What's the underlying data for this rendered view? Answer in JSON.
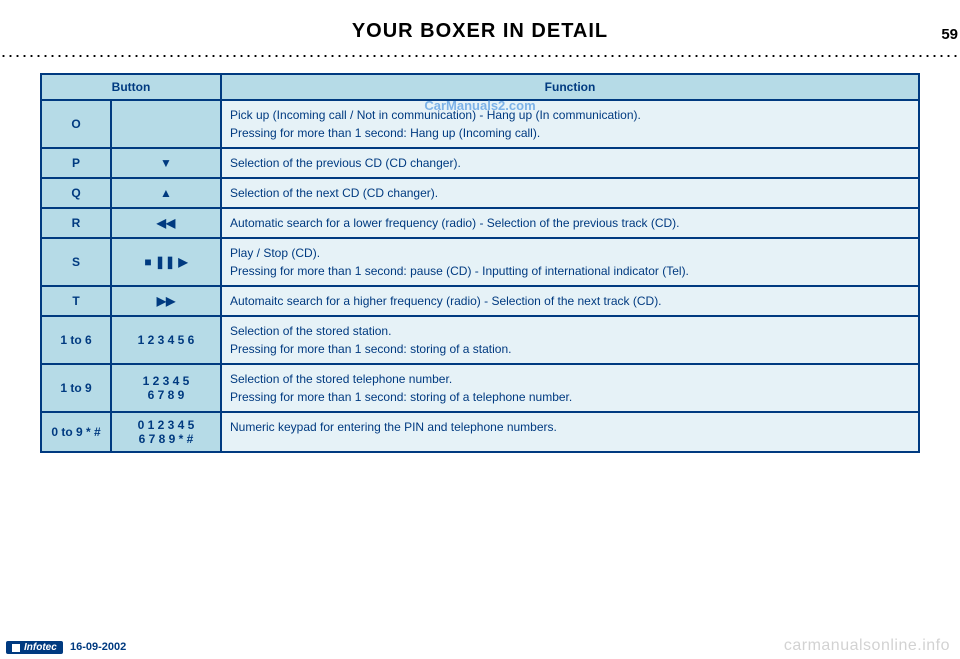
{
  "page_number": "59",
  "title": "YOUR BOXER IN DETAIL",
  "watermark_top": "CarManuals2.com",
  "table": {
    "headers": {
      "button": "Button",
      "function": "Function"
    },
    "rows": [
      {
        "key": "O",
        "symbol": "",
        "function": "Pick up (Incoming call / Not in communication) - Hang up (In communication).\nPressing for more than 1 second: Hang up (Incoming call)."
      },
      {
        "key": "P",
        "symbol": "▼",
        "function": "Selection of the previous CD (CD changer)."
      },
      {
        "key": "Q",
        "symbol": "▲",
        "function": "Selection of the next CD (CD changer)."
      },
      {
        "key": "R",
        "symbol": "◀◀",
        "function": "Automatic search for a lower frequency (radio) - Selection of the previous track (CD)."
      },
      {
        "key": "S",
        "symbol": "■   ❚❚   ▶",
        "function": "Play / Stop (CD).\nPressing for more than 1 second: pause (CD) - Inputting of international indicator (Tel)."
      },
      {
        "key": "T",
        "symbol": "▶▶",
        "function": "Automaitc search for a higher frequency (radio) - Selection of the next track (CD)."
      },
      {
        "key": "1 to 6",
        "symbol": "1 2 3 4 5 6",
        "function": "Selection of the stored station.\nPressing for more than 1 second: storing of a station."
      },
      {
        "key": "1 to 9",
        "symbol": "1 2 3 4 5\n6 7 8 9",
        "function": "Selection of the stored telephone number.\nPressing for more than 1 second: storing of a telephone number."
      },
      {
        "key": "0 to 9 * #",
        "symbol": "0 1 2 3 4 5\n6 7 8 9 * #",
        "function": "Numeric keypad for entering the PIN and telephone numbers."
      }
    ]
  },
  "footer": {
    "brand": "Infotec",
    "date": "16-09-2002",
    "watermark": "carmanualsonline.info"
  },
  "colors": {
    "header_bg": "#b6dbe7",
    "cell_bg": "#e6f2f7",
    "border": "#003a80",
    "text": "#003a80"
  }
}
